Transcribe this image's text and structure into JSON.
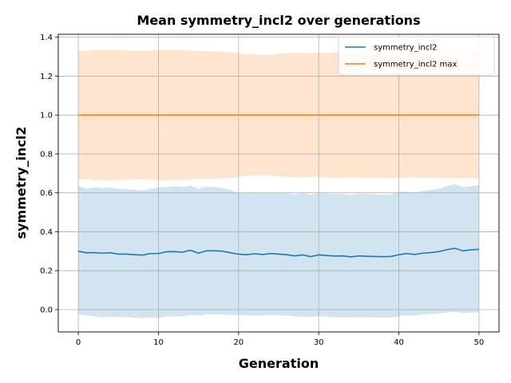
{
  "chart_data": {
    "type": "line",
    "title": "Mean symmetry_incl2 over generations",
    "xlabel": "Generation",
    "ylabel": "symmetry_incl2",
    "xlim": [
      -2.5,
      52.5
    ],
    "ylim": [
      -0.115,
      1.415
    ],
    "xticks": [
      0,
      10,
      20,
      30,
      40,
      50
    ],
    "yticks": [
      0.0,
      0.2,
      0.4,
      0.6,
      0.8,
      1.0,
      1.2,
      1.4
    ],
    "ytick_labels": [
      "0.0",
      "0.2",
      "0.4",
      "0.6",
      "0.8",
      "1.0",
      "1.2",
      "1.4"
    ],
    "grid": true,
    "legend_position": "top-right",
    "series": [
      {
        "name": "symmetry_incl2",
        "color": "#1f77b4",
        "band_color": "#1f77b4",
        "x": [
          0,
          1,
          2,
          3,
          4,
          5,
          6,
          7,
          8,
          9,
          10,
          11,
          12,
          13,
          14,
          15,
          16,
          17,
          18,
          19,
          20,
          21,
          22,
          23,
          24,
          25,
          26,
          27,
          28,
          29,
          30,
          31,
          32,
          33,
          34,
          35,
          36,
          37,
          38,
          39,
          40,
          41,
          42,
          43,
          44,
          45,
          46,
          47,
          48,
          49,
          50
        ],
        "values": [
          0.3,
          0.292,
          0.293,
          0.29,
          0.292,
          0.285,
          0.285,
          0.282,
          0.28,
          0.288,
          0.288,
          0.297,
          0.298,
          0.295,
          0.305,
          0.29,
          0.302,
          0.302,
          0.3,
          0.292,
          0.285,
          0.282,
          0.287,
          0.283,
          0.288,
          0.285,
          0.282,
          0.276,
          0.281,
          0.272,
          0.281,
          0.278,
          0.275,
          0.276,
          0.271,
          0.276,
          0.274,
          0.273,
          0.272,
          0.273,
          0.282,
          0.288,
          0.283,
          0.29,
          0.293,
          0.298,
          0.308,
          0.315,
          0.302,
          0.307,
          0.31
        ],
        "upper": [
          0.635,
          0.622,
          0.628,
          0.625,
          0.628,
          0.62,
          0.62,
          0.615,
          0.612,
          0.62,
          0.628,
          0.63,
          0.635,
          0.63,
          0.638,
          0.62,
          0.632,
          0.63,
          0.625,
          0.615,
          0.6,
          0.598,
          0.602,
          0.598,
          0.602,
          0.6,
          0.598,
          0.592,
          0.6,
          0.59,
          0.598,
          0.596,
          0.594,
          0.595,
          0.59,
          0.596,
          0.594,
          0.592,
          0.59,
          0.592,
          0.603,
          0.608,
          0.602,
          0.61,
          0.615,
          0.62,
          0.635,
          0.645,
          0.63,
          0.635,
          0.64
        ],
        "lower": [
          -0.025,
          -0.03,
          -0.035,
          -0.04,
          -0.036,
          -0.04,
          -0.038,
          -0.042,
          -0.045,
          -0.04,
          -0.045,
          -0.035,
          -0.035,
          -0.035,
          -0.028,
          -0.03,
          -0.025,
          -0.025,
          -0.026,
          -0.028,
          -0.028,
          -0.03,
          -0.03,
          -0.03,
          -0.028,
          -0.03,
          -0.032,
          -0.035,
          -0.036,
          -0.038,
          -0.035,
          -0.036,
          -0.04,
          -0.04,
          -0.04,
          -0.038,
          -0.04,
          -0.04,
          -0.042,
          -0.04,
          -0.035,
          -0.03,
          -0.03,
          -0.025,
          -0.022,
          -0.02,
          -0.015,
          -0.012,
          -0.018,
          -0.015,
          -0.015
        ]
      },
      {
        "name": "symmetry_incl2 max",
        "color": "#ff7f0e",
        "band_color": "#ff7f0e",
        "x": [
          0,
          1,
          2,
          3,
          4,
          5,
          6,
          7,
          8,
          9,
          10,
          11,
          12,
          13,
          14,
          15,
          16,
          17,
          18,
          19,
          20,
          21,
          22,
          23,
          24,
          25,
          26,
          27,
          28,
          29,
          30,
          31,
          32,
          33,
          34,
          35,
          36,
          37,
          38,
          39,
          40,
          41,
          42,
          43,
          44,
          45,
          46,
          47,
          48,
          49,
          50
        ],
        "values": [
          1.0,
          1.0,
          1.0,
          1.0,
          1.0,
          1.0,
          1.0,
          1.0,
          1.0,
          1.0,
          1.0,
          1.0,
          1.0,
          1.0,
          1.0,
          1.0,
          1.0,
          1.0,
          1.0,
          1.0,
          1.0,
          1.0,
          1.0,
          1.0,
          1.0,
          1.0,
          1.0,
          1.0,
          1.0,
          1.0,
          1.0,
          1.0,
          1.0,
          1.0,
          1.0,
          1.0,
          1.0,
          1.0,
          1.0,
          1.0,
          1.0,
          1.0,
          1.0,
          1.0,
          1.0,
          1.0,
          1.0,
          1.0,
          1.0,
          1.0,
          1.0
        ],
        "upper": [
          1.33,
          1.33,
          1.335,
          1.335,
          1.335,
          1.335,
          1.332,
          1.332,
          1.33,
          1.332,
          1.335,
          1.335,
          1.335,
          1.334,
          1.332,
          1.328,
          1.33,
          1.328,
          1.325,
          1.325,
          1.318,
          1.312,
          1.312,
          1.31,
          1.31,
          1.315,
          1.318,
          1.32,
          1.318,
          1.318,
          1.32,
          1.32,
          1.322,
          1.322,
          1.32,
          1.322,
          1.322,
          1.322,
          1.325,
          1.325,
          1.325,
          1.32,
          1.32,
          1.322,
          1.322,
          1.325,
          1.325,
          1.325,
          1.325,
          1.325,
          1.325
        ],
        "lower": [
          0.67,
          0.67,
          0.665,
          0.665,
          0.665,
          0.665,
          0.668,
          0.668,
          0.67,
          0.668,
          0.665,
          0.665,
          0.665,
          0.666,
          0.668,
          0.672,
          0.67,
          0.672,
          0.675,
          0.675,
          0.682,
          0.688,
          0.688,
          0.69,
          0.69,
          0.685,
          0.682,
          0.68,
          0.682,
          0.682,
          0.68,
          0.68,
          0.678,
          0.678,
          0.68,
          0.678,
          0.678,
          0.678,
          0.675,
          0.675,
          0.675,
          0.68,
          0.68,
          0.678,
          0.678,
          0.675,
          0.675,
          0.675,
          0.675,
          0.675,
          0.675
        ]
      }
    ]
  }
}
